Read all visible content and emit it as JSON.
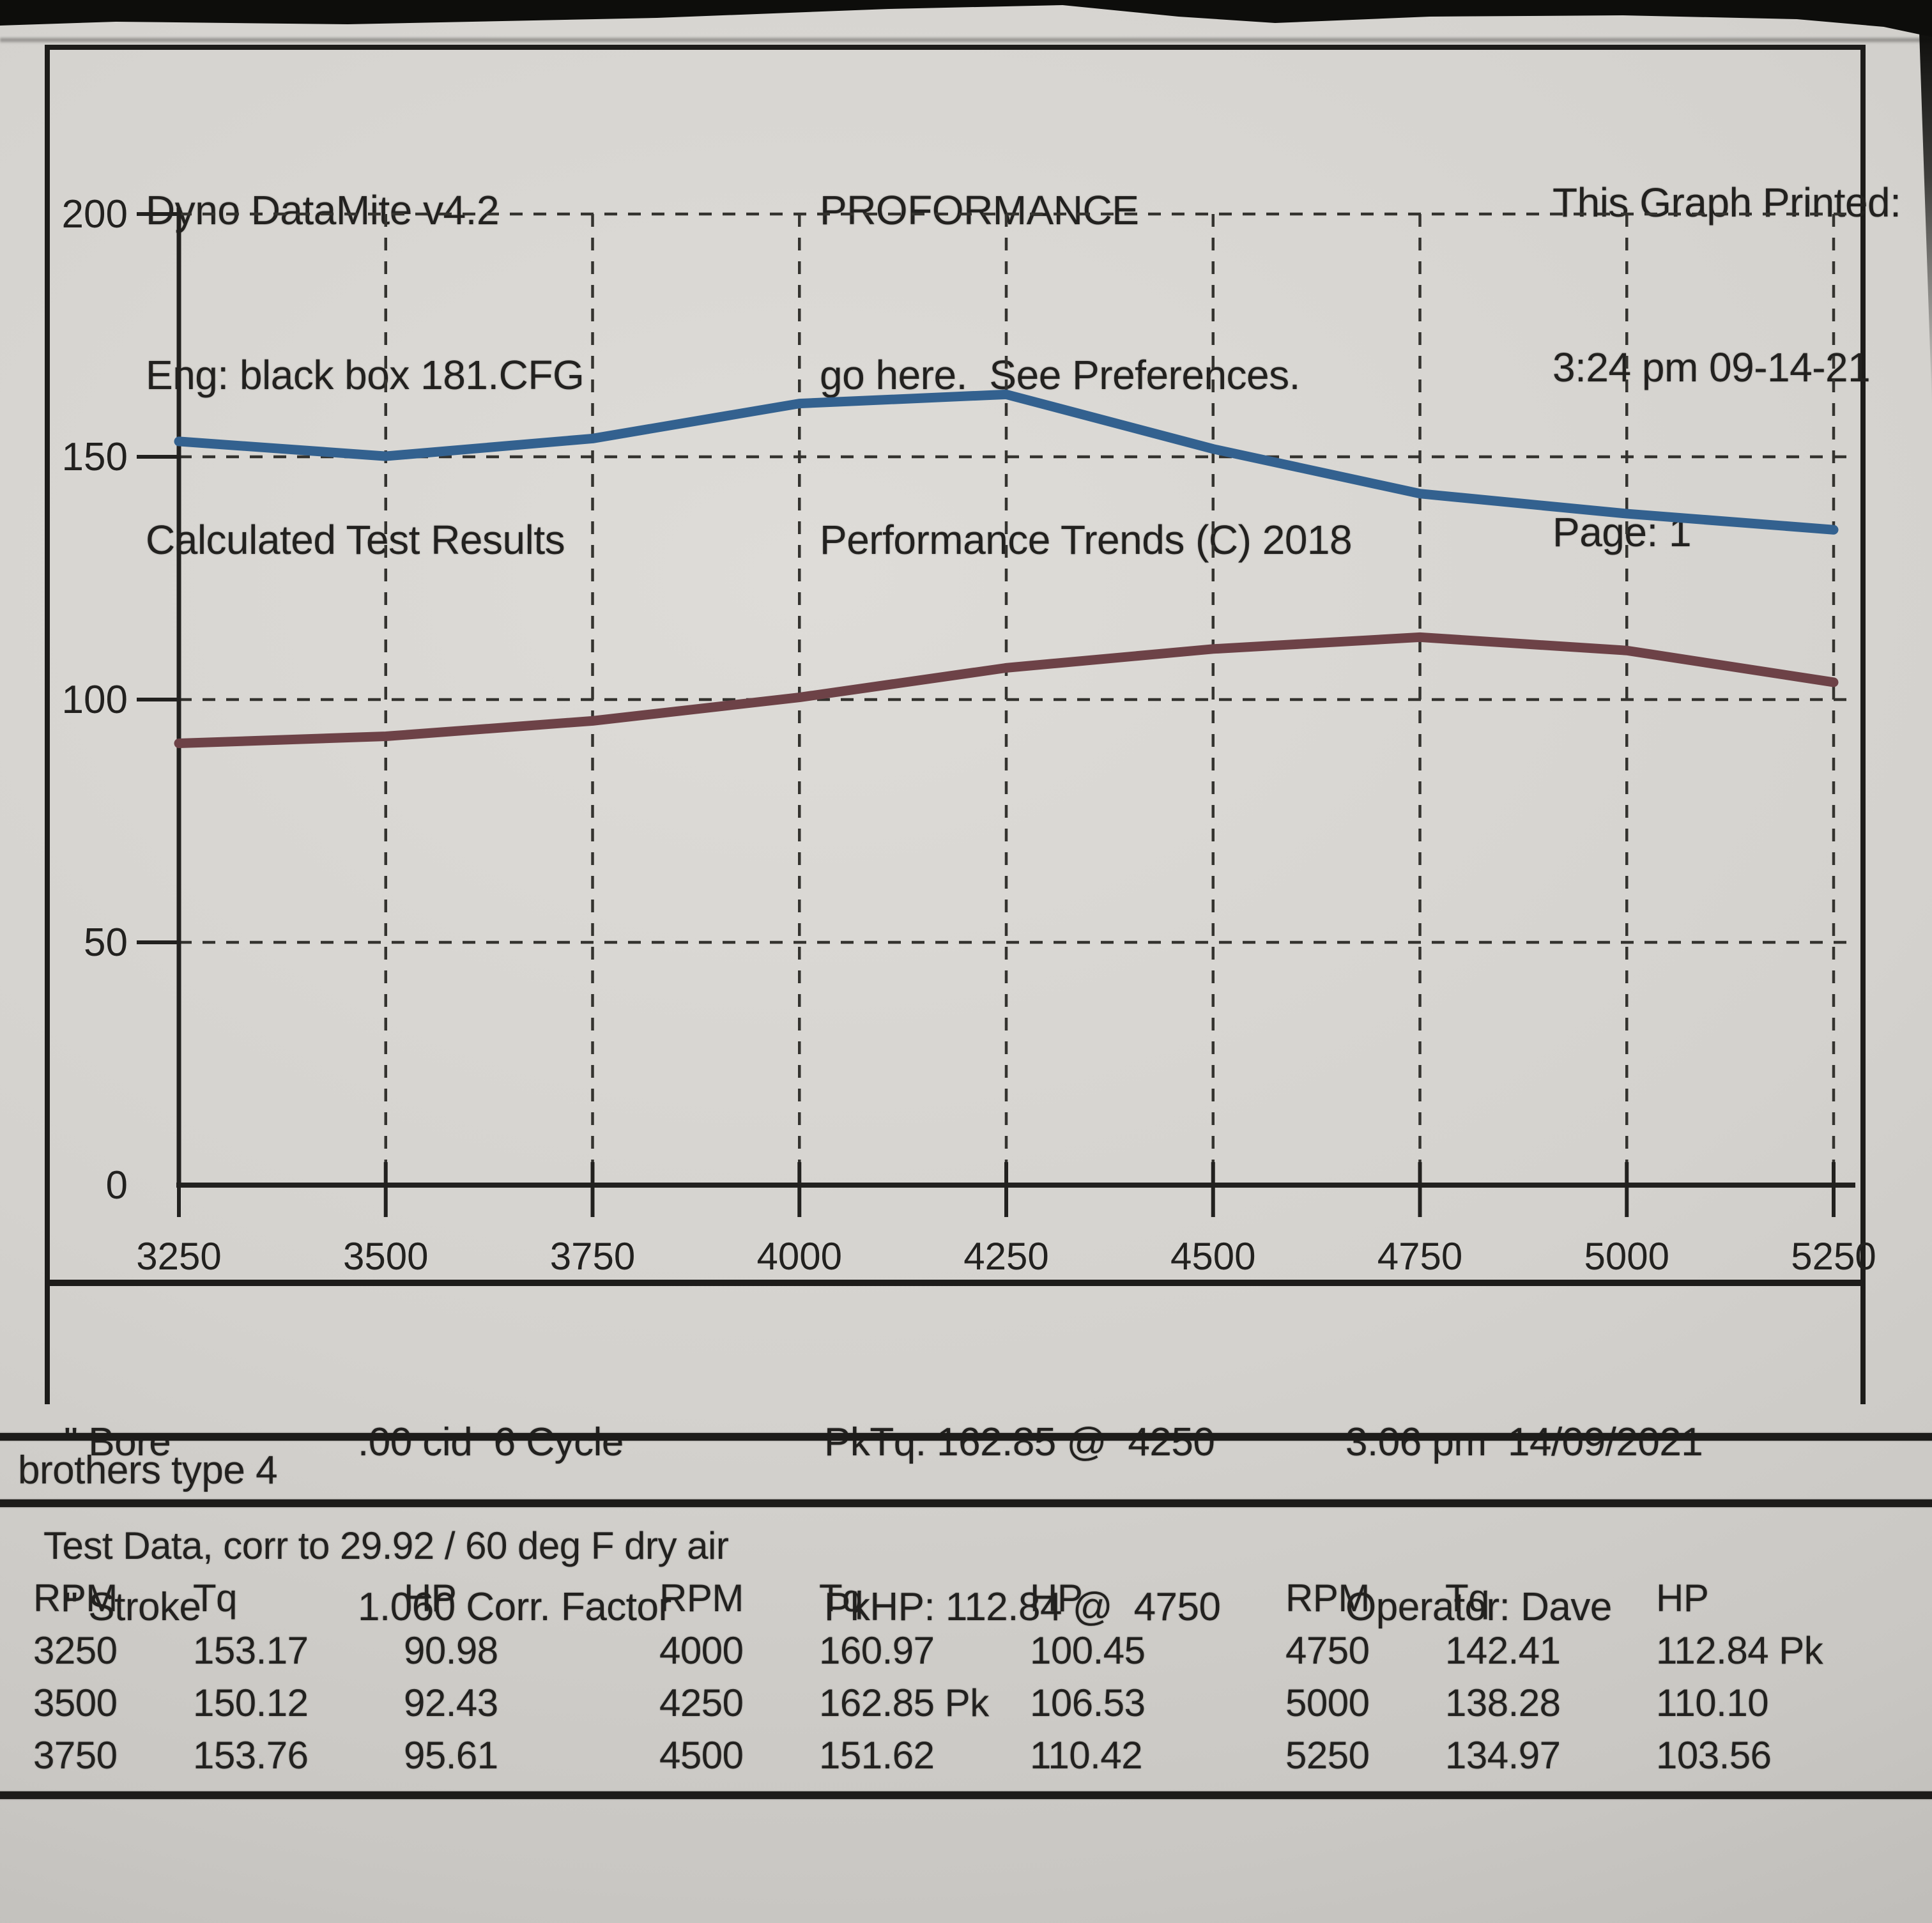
{
  "photo": {
    "background": "#0d0d0b",
    "paper_light": "#dedcd8",
    "paper_dark": "#b5b3af",
    "ink": "#22211f"
  },
  "header": {
    "left": [
      "Dyno DataMite v4.2",
      "Eng: black box 181.CFG",
      "Calculated Test Results"
    ],
    "center": [
      "PROFORMANCE",
      "go here.  See Preferences.",
      "Performance Trends (C) 2018"
    ],
    "right": [
      "This Graph Printed:",
      "3:24 pm 09-14-21",
      "Page: 1"
    ]
  },
  "chart_data": {
    "type": "line",
    "x": [
      3250,
      3500,
      3750,
      4000,
      4250,
      4500,
      4750,
      5000,
      5250
    ],
    "series": [
      {
        "name": "Tq",
        "color": "#33618f",
        "values": [
          153.17,
          150.12,
          153.76,
          160.97,
          162.85,
          151.62,
          142.41,
          138.28,
          134.97
        ]
      },
      {
        "name": "HP",
        "color": "#6d4247",
        "values": [
          90.98,
          92.43,
          95.61,
          100.45,
          106.53,
          110.42,
          112.84,
          110.1,
          103.56
        ]
      }
    ],
    "title": "",
    "xlabel": "",
    "ylabel": "",
    "xlim": [
      3250,
      5250
    ],
    "ylim": [
      0,
      200
    ],
    "xticks": [
      3250,
      3500,
      3750,
      4000,
      4250,
      4500,
      4750,
      5000,
      5250
    ],
    "yticks": [
      0,
      50,
      100,
      150,
      200
    ],
    "grid": "dashed",
    "legend": "none"
  },
  "info": {
    "bore": "\" Bore",
    "stroke": "\" Stroke",
    "cid": ".00 cid  6 Cycle",
    "corr_factor": "1.060 Corr. Factor",
    "pk_tq": "PkTq: 162.85 @  4250",
    "pk_hp": "PkHP: 112.84 @  4750",
    "run_time": "3:06 pm  14/09/2021",
    "operator": "Operator: Dave"
  },
  "engine_note": "brothers type 4",
  "test_data": {
    "title": "Test Data, corr to 29.92 / 60 deg F dry air",
    "columns": [
      "RPM",
      "Tq",
      "HP"
    ],
    "groups": [
      [
        [
          "3250",
          "153.17",
          "90.98"
        ],
        [
          "3500",
          "150.12",
          "92.43"
        ],
        [
          "3750",
          "153.76",
          "95.61"
        ]
      ],
      [
        [
          "4000",
          "160.97",
          "100.45"
        ],
        [
          "4250",
          "162.85 Pk",
          "106.53"
        ],
        [
          "4500",
          "151.62",
          "110.42"
        ]
      ],
      [
        [
          "4750",
          "142.41",
          "112.84 Pk"
        ],
        [
          "5000",
          "138.28",
          "110.10"
        ],
        [
          "5250",
          "134.97",
          "103.56"
        ]
      ]
    ]
  }
}
